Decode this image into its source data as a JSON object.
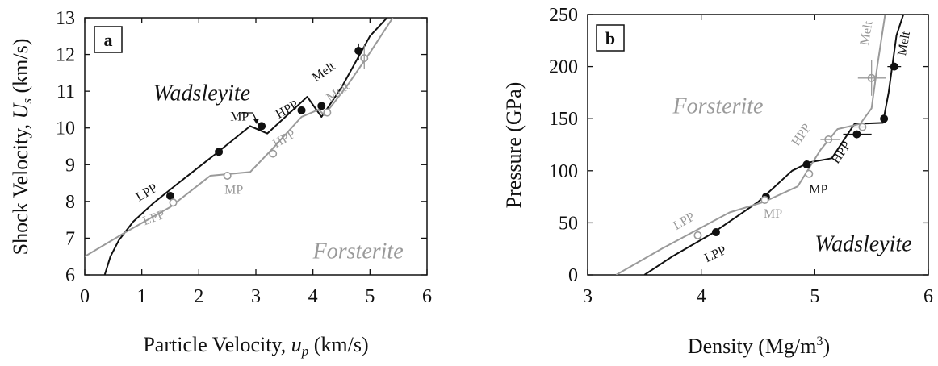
{
  "colors": {
    "black": "#111111",
    "gray": "#9a9a9a"
  },
  "chart_data": [
    {
      "type": "line",
      "panel_label": "a",
      "xlabel_main": "Particle Velocity, ",
      "xlabel_var": "u",
      "xlabel_sub": "p",
      "xlabel_unit": " (km/s)",
      "ylabel_main": "Shock Velocity, ",
      "ylabel_var": "U",
      "ylabel_sub": "s",
      "ylabel_unit": " (km/s)",
      "xlim": [
        0,
        6
      ],
      "ylim": [
        6,
        13
      ],
      "xticks": [
        "0",
        "1",
        "2",
        "3",
        "4",
        "5",
        "6"
      ],
      "yticks": [
        "6",
        "7",
        "8",
        "9",
        "10",
        "11",
        "12",
        "13"
      ],
      "phase_labels": [
        {
          "text": "Wadsleyite",
          "x": 1.2,
          "y": 10.75,
          "color": "black"
        },
        {
          "text": "Forsterite",
          "x": 4.0,
          "y": 6.45,
          "color": "gray"
        }
      ],
      "series": [
        {
          "color": "black",
          "line": [
            [
              0.35,
              6.0
            ],
            [
              0.45,
              6.5
            ],
            [
              0.6,
              6.95
            ],
            [
              0.85,
              7.45
            ],
            [
              1.2,
              7.95
            ],
            [
              1.6,
              8.45
            ],
            [
              2.3,
              9.3
            ],
            [
              2.9,
              10.05
            ],
            [
              3.2,
              9.85
            ],
            [
              3.9,
              10.85
            ],
            [
              4.15,
              10.3
            ],
            [
              4.5,
              11.1
            ],
            [
              5.0,
              12.5
            ],
            [
              5.3,
              13.0
            ]
          ],
          "points": [
            {
              "x": 1.5,
              "y": 8.15,
              "filled": true
            },
            {
              "x": 2.35,
              "y": 9.35,
              "filled": true
            },
            {
              "x": 3.1,
              "y": 10.05,
              "filled": true
            },
            {
              "x": 3.8,
              "y": 10.48,
              "filled": true
            },
            {
              "x": 4.15,
              "y": 10.6,
              "filled": true
            },
            {
              "x": 4.8,
              "y": 12.1,
              "filled": true
            }
          ]
        },
        {
          "color": "gray",
          "line": [
            [
              0.0,
              6.5
            ],
            [
              0.7,
              7.15
            ],
            [
              1.5,
              7.85
            ],
            [
              2.2,
              8.7
            ],
            [
              2.9,
              8.8
            ],
            [
              3.3,
              9.45
            ],
            [
              3.8,
              10.3
            ],
            [
              4.1,
              10.5
            ],
            [
              4.2,
              10.35
            ],
            [
              4.6,
              11.15
            ],
            [
              5.0,
              12.05
            ],
            [
              5.4,
              13.0
            ]
          ],
          "points": [
            {
              "x": 1.55,
              "y": 7.97,
              "filled": false
            },
            {
              "x": 2.5,
              "y": 8.7,
              "filled": false
            },
            {
              "x": 3.3,
              "y": 9.3,
              "filled": false
            },
            {
              "x": 4.25,
              "y": 10.42,
              "filled": false
            },
            {
              "x": 4.9,
              "y": 11.9,
              "filled": false
            }
          ]
        }
      ],
      "annotations": [
        {
          "text": "LPP",
          "x": 0.95,
          "y": 8.0,
          "rotate": -30,
          "color": "black"
        },
        {
          "text": "LPP",
          "x": 1.05,
          "y": 7.35,
          "rotate": -20,
          "color": "gray"
        },
        {
          "text": "MP",
          "x": 2.45,
          "y": 8.2,
          "rotate": 0,
          "color": "gray"
        },
        {
          "text": "MP",
          "x": 2.55,
          "y": 10.2,
          "rotate": 0,
          "color": "black"
        },
        {
          "text": "HPP",
          "x": 3.4,
          "y": 10.25,
          "rotate": -30,
          "color": "black"
        },
        {
          "text": "HPP",
          "x": 3.35,
          "y": 9.45,
          "rotate": -30,
          "color": "gray"
        },
        {
          "text": "Melt",
          "x": 4.05,
          "y": 11.25,
          "rotate": -35,
          "color": "black"
        },
        {
          "text": "Melt",
          "x": 4.3,
          "y": 10.7,
          "rotate": -35,
          "color": "gray"
        }
      ]
    },
    {
      "type": "line",
      "panel_label": "b",
      "xlabel_main": "Density (Mg/m",
      "xlabel_sup": "3",
      "xlabel_unit": ")",
      "ylabel_main": "Pressure (GPa)",
      "xlim": [
        3,
        6
      ],
      "ylim": [
        0,
        250
      ],
      "xticks": [
        "3",
        "4",
        "5",
        "6"
      ],
      "yticks": [
        "0",
        "50",
        "100",
        "150",
        "200",
        "250"
      ],
      "phase_labels": [
        {
          "text": "Forsterite",
          "x": 3.75,
          "y": 155,
          "color": "gray"
        },
        {
          "text": "Wadsleyite",
          "x": 5.0,
          "y": 23,
          "color": "black"
        }
      ],
      "series": [
        {
          "color": "black",
          "line": [
            [
              3.5,
              0
            ],
            [
              3.75,
              18
            ],
            [
              4.1,
              40
            ],
            [
              4.5,
              70
            ],
            [
              4.8,
              100
            ],
            [
              4.95,
              108
            ],
            [
              5.15,
              112
            ],
            [
              5.35,
              145
            ],
            [
              5.6,
              146
            ],
            [
              5.65,
              175
            ],
            [
              5.72,
              230
            ],
            [
              5.78,
              250
            ]
          ],
          "points": [
            {
              "x": 4.13,
              "y": 41,
              "filled": true
            },
            {
              "x": 4.57,
              "y": 75,
              "filled": true
            },
            {
              "x": 4.93,
              "y": 106,
              "filled": true
            },
            {
              "x": 5.37,
              "y": 135,
              "filled": true
            },
            {
              "x": 5.61,
              "y": 150,
              "filled": true
            },
            {
              "x": 5.7,
              "y": 200,
              "filled": true
            }
          ]
        },
        {
          "color": "gray",
          "line": [
            [
              3.25,
              0
            ],
            [
              3.65,
              25
            ],
            [
              4.25,
              60
            ],
            [
              4.55,
              70
            ],
            [
              4.85,
              85
            ],
            [
              5.05,
              120
            ],
            [
              5.2,
              140
            ],
            [
              5.4,
              145
            ],
            [
              5.5,
              160
            ],
            [
              5.55,
              200
            ],
            [
              5.62,
              250
            ]
          ],
          "points": [
            {
              "x": 3.97,
              "y": 38,
              "filled": false
            },
            {
              "x": 4.56,
              "y": 72,
              "filled": false
            },
            {
              "x": 4.95,
              "y": 97,
              "filled": false
            },
            {
              "x": 5.12,
              "y": 130,
              "filled": false
            },
            {
              "x": 5.42,
              "y": 142,
              "filled": false
            },
            {
              "x": 5.5,
              "y": 189,
              "filled": false
            }
          ]
        }
      ],
      "annotations": [
        {
          "text": "LPP",
          "x": 3.78,
          "y": 43,
          "rotate": -30,
          "color": "gray"
        },
        {
          "text": "LPP",
          "x": 4.05,
          "y": 12,
          "rotate": -25,
          "color": "black"
        },
        {
          "text": "MP",
          "x": 4.55,
          "y": 55,
          "rotate": 0,
          "color": "gray"
        },
        {
          "text": "MP",
          "x": 4.95,
          "y": 78,
          "rotate": 0,
          "color": "black"
        },
        {
          "text": "HPP",
          "x": 4.85,
          "y": 123,
          "rotate": -55,
          "color": "gray"
        },
        {
          "text": "HPP",
          "x": 5.2,
          "y": 106,
          "rotate": -55,
          "color": "black"
        },
        {
          "text": "Melt",
          "x": 5.47,
          "y": 220,
          "rotate": -80,
          "color": "gray"
        },
        {
          "text": "Melt",
          "x": 5.8,
          "y": 210,
          "rotate": -80,
          "color": "black"
        }
      ]
    }
  ]
}
